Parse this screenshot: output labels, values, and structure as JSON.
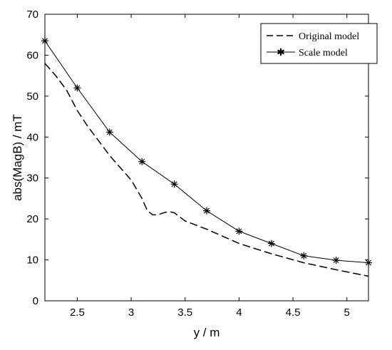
{
  "chart_data": {
    "type": "line",
    "xlabel": "y / m",
    "ylabel": "abs(MagB) / mT",
    "xlim": [
      2.2,
      5.2
    ],
    "ylim": [
      0,
      70
    ],
    "xticks": [
      "2.5",
      "3",
      "3.5",
      "4",
      "4.5",
      "5"
    ],
    "yticks": [
      "0",
      "10",
      "20",
      "30",
      "40",
      "50",
      "60",
      "70"
    ],
    "grid": false,
    "legend_position": "top-right",
    "series": [
      {
        "name": "Original model",
        "style": "dashed",
        "color": "#000000",
        "x": [
          2.2,
          2.3,
          2.4,
          2.5,
          2.6,
          2.7,
          2.8,
          2.9,
          3.0,
          3.1,
          3.15,
          3.2,
          3.25,
          3.3,
          3.35,
          3.4,
          3.45,
          3.5,
          3.7,
          4.0,
          4.3,
          4.6,
          4.9,
          5.2
        ],
        "y": [
          58,
          55,
          51.5,
          46.5,
          42.5,
          39,
          35.5,
          32.5,
          29.5,
          25,
          22,
          21,
          21,
          21.5,
          21.8,
          21.5,
          20.5,
          19.5,
          17.5,
          14,
          11.5,
          9.3,
          7.6,
          6
        ]
      },
      {
        "name": "Scale model",
        "style": "solid-star",
        "color": "#000000",
        "x": [
          2.2,
          2.5,
          2.8,
          3.1,
          3.4,
          3.7,
          4.0,
          4.3,
          4.6,
          4.9,
          5.2
        ],
        "y": [
          63.5,
          52,
          41.2,
          34,
          28.5,
          22,
          17,
          14,
          11,
          9.9,
          9.3
        ]
      }
    ]
  }
}
